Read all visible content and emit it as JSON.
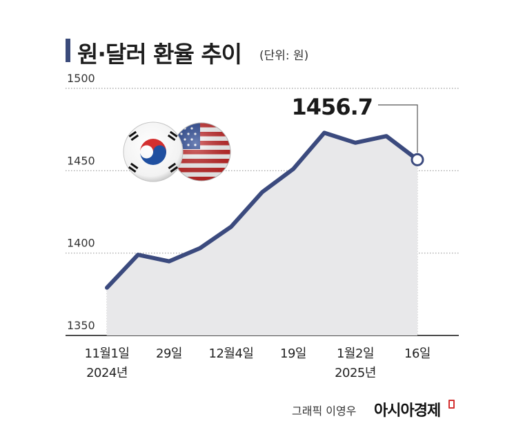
{
  "title": "원·달러 환율 추이",
  "unit": "(단위: 원)",
  "credit": "그래픽 이영우",
  "brand": "아시아경제",
  "chart_data": {
    "type": "line",
    "title": "원·달러 환율 추이",
    "ylabel": "",
    "xlabel": "",
    "ylim": [
      1350,
      1500
    ],
    "yticks": [
      1350,
      1400,
      1450,
      1500
    ],
    "grid": true,
    "x_tick_labels": [
      {
        "line1": "11월1일",
        "line2": "2024년"
      },
      {
        "line1": "29일",
        "line2": ""
      },
      {
        "line1": "12월4일",
        "line2": ""
      },
      {
        "line1": "19일",
        "line2": ""
      },
      {
        "line1": "1월2일",
        "line2": "2025년"
      },
      {
        "line1": "16일",
        "line2": ""
      }
    ],
    "series": [
      {
        "values": [
          1379,
          1399,
          1395,
          1403,
          1416,
          1437,
          1451,
          1473,
          1467,
          1471,
          1456.7
        ],
        "tick_index": [
          0,
          2,
          4,
          6,
          8,
          10
        ]
      }
    ],
    "annotation": {
      "text": "1456.7",
      "point_index": 10
    },
    "colors": {
      "line": "#3b4a7e",
      "fill": "#e8e8ea",
      "grid": "#9a9a9a"
    }
  }
}
